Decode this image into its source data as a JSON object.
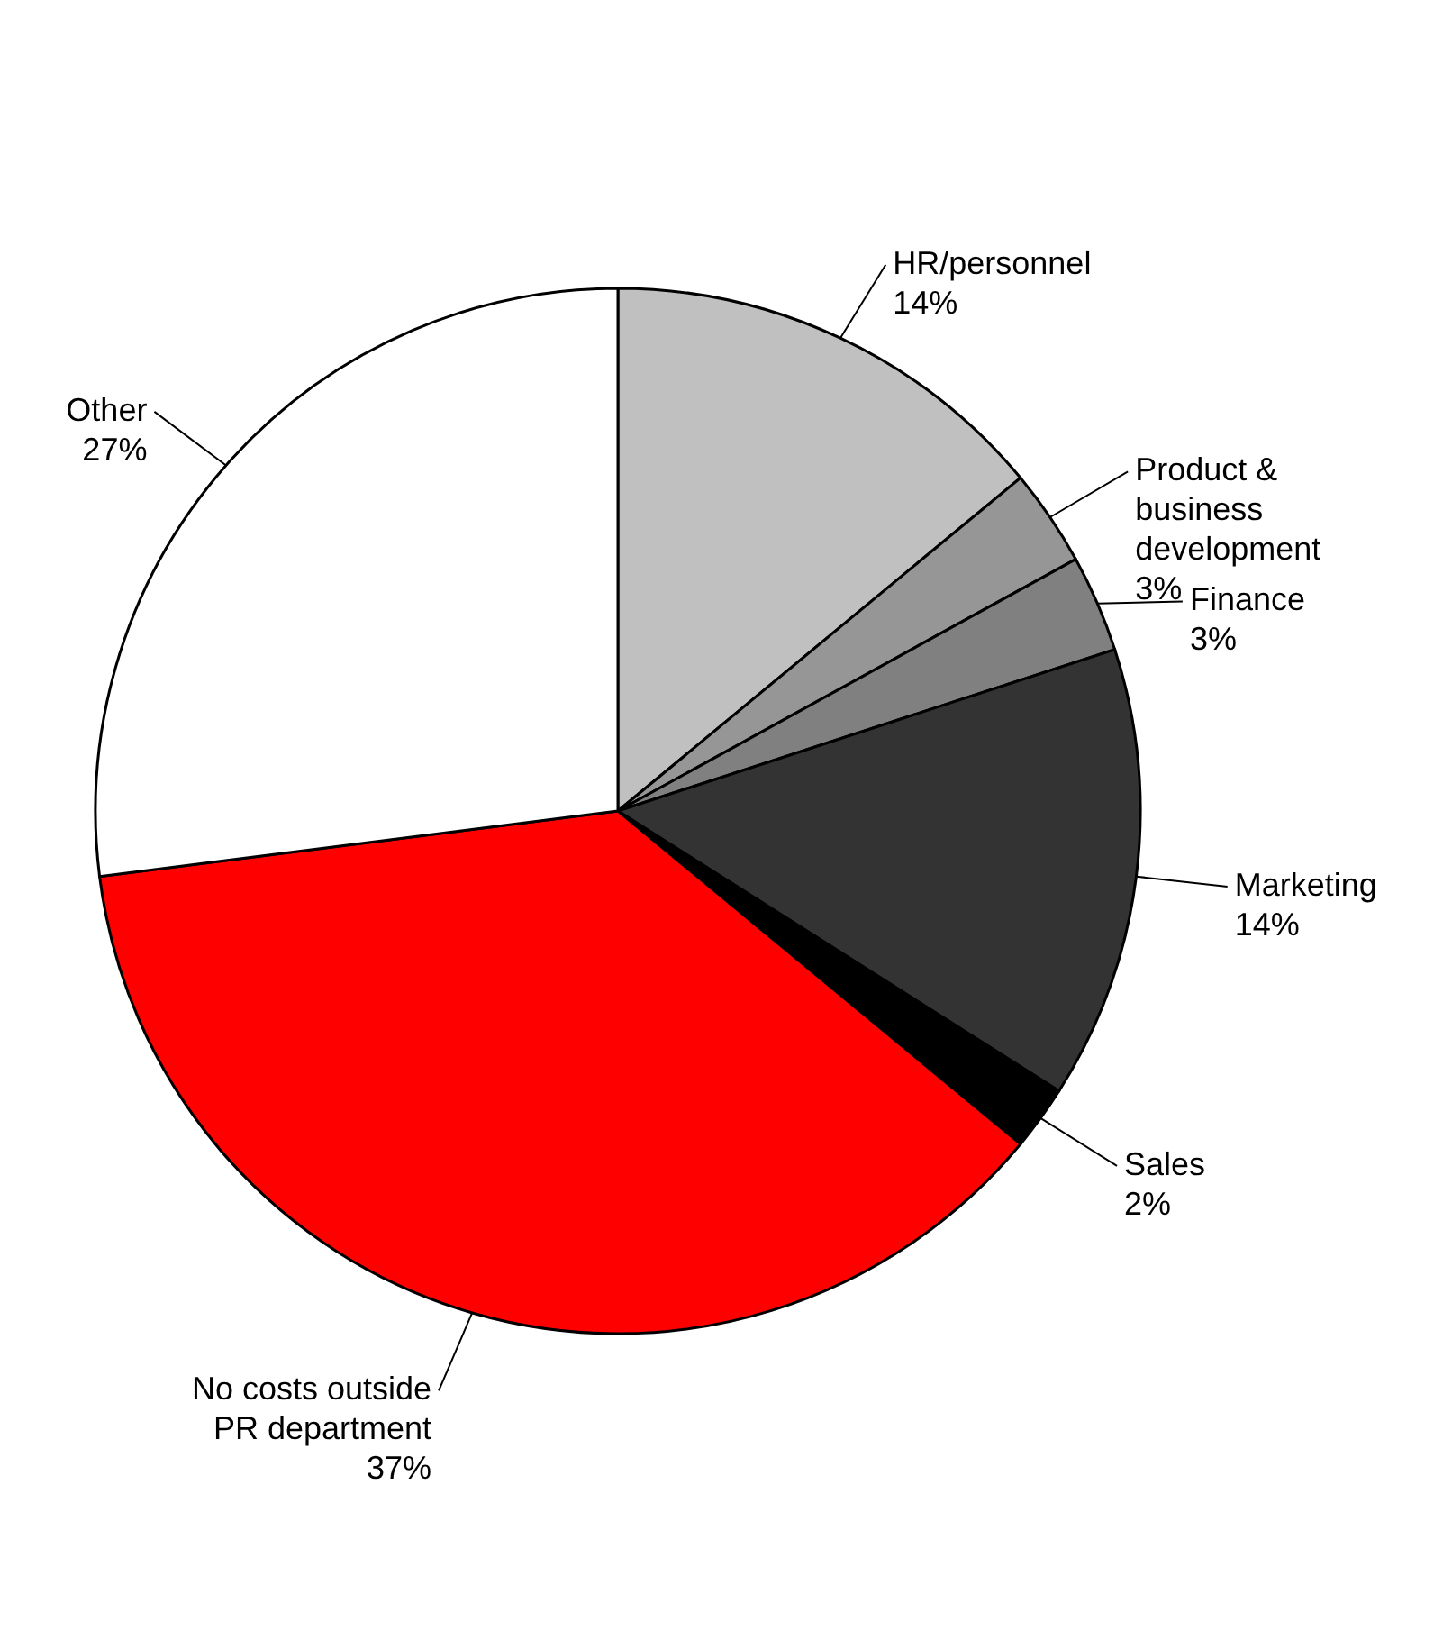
{
  "chart_data": {
    "type": "pie",
    "categories": [
      "HR/personnel",
      "Product & business development",
      "Finance",
      "Marketing",
      "Sales",
      "No costs outside PR department",
      "Other"
    ],
    "values": [
      14,
      3,
      3,
      14,
      2,
      37,
      27
    ],
    "colors": [
      "#c0c0c0",
      "#969696",
      "#808080",
      "#333333",
      "#000000",
      "#ff0000",
      "#ffffff"
    ],
    "value_labels": [
      "14%",
      "3%",
      "3%",
      "14%",
      "2%",
      "37%",
      "27%"
    ]
  }
}
